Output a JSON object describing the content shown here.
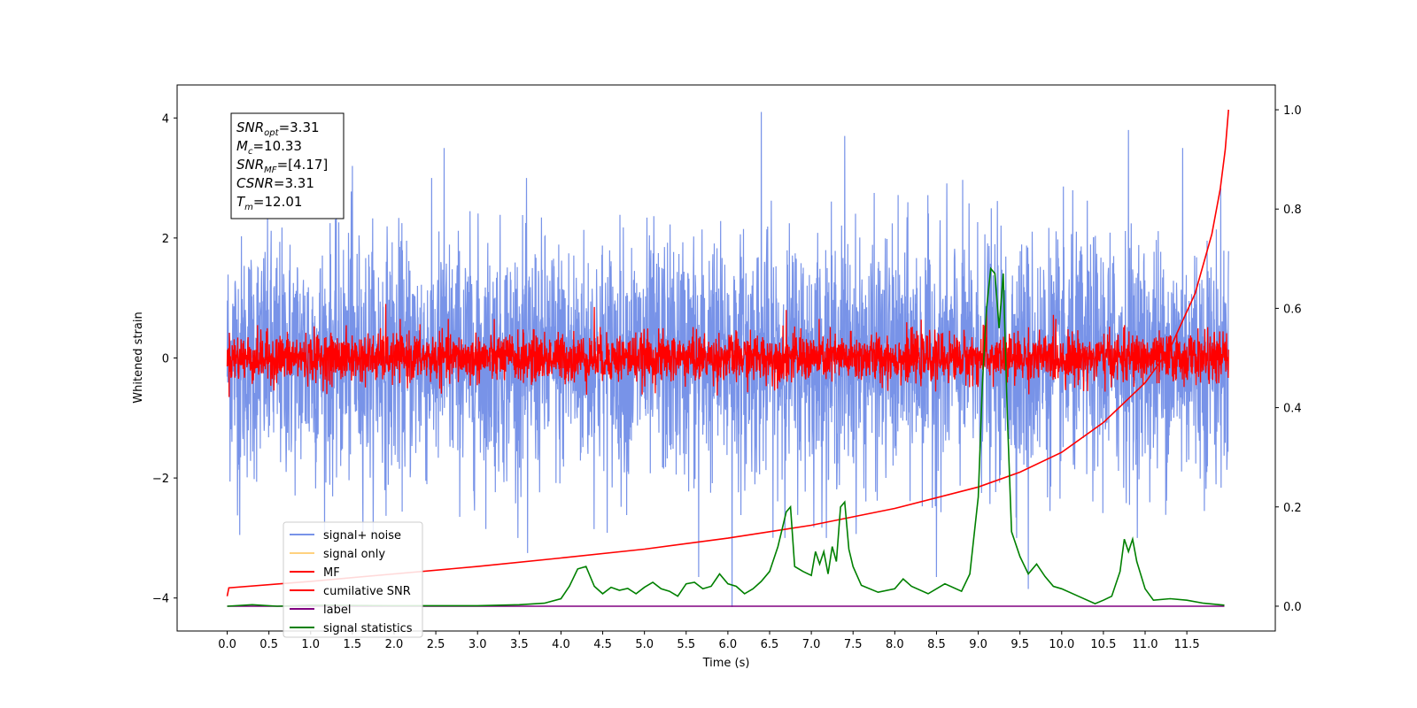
{
  "chart_data": {
    "type": "line",
    "xlabel": "Time (s)",
    "ylabel": "Whitened strain",
    "xlim": [
      -0.6,
      12.56
    ],
    "ylim": [
      -4.55,
      4.55
    ],
    "y2lim": [
      -0.05,
      1.05
    ],
    "x_ticks": [
      "0.0",
      "0.5",
      "1.0",
      "1.5",
      "2.0",
      "2.5",
      "3.0",
      "3.5",
      "4.0",
      "4.5",
      "5.0",
      "5.5",
      "6.0",
      "6.5",
      "7.0",
      "7.5",
      "8.0",
      "8.5",
      "9.0",
      "9.5",
      "10.0",
      "10.5",
      "11.0",
      "11.5"
    ],
    "y_ticks": [
      "−4",
      "−2",
      "0",
      "2",
      "4"
    ],
    "y2_ticks": [
      "0.0",
      "0.2",
      "0.4",
      "0.6",
      "0.8",
      "1.0"
    ],
    "info_box": [
      {
        "base": "SNR",
        "sub": "opt",
        "value": "=3.31"
      },
      {
        "base": "M",
        "sub": "c",
        "value": "=10.33"
      },
      {
        "base": "SNR",
        "sub": "MF",
        "value": "=[4.17]"
      },
      {
        "base": "CSNR",
        "sub": "",
        "value": "=3.31"
      },
      {
        "base": "T",
        "sub": "m",
        "value": "=12.01"
      }
    ],
    "legend": {
      "placement": "lower-left",
      "entries": [
        {
          "label": "signal+ noise",
          "color": "#7893e8"
        },
        {
          "label": "signal only",
          "color": "#ffd27f"
        },
        {
          "label": "MF",
          "color": "#ff0000"
        },
        {
          "label": "cumilative SNR",
          "color": "#ff0000"
        },
        {
          "label": "label",
          "color": "#800080"
        },
        {
          "label": "signal statistics",
          "color": "#008000"
        }
      ]
    },
    "series": [
      {
        "name": "signal+ noise",
        "color": "#7893e8",
        "axis": "left",
        "x_range": [
          0,
          12.0
        ],
        "peaks": [
          {
            "x": 6.4,
            "y": 4.1
          },
          {
            "x": 10.8,
            "y": 3.8
          },
          {
            "x": 7.4,
            "y": 3.7
          },
          {
            "x": 1.5,
            "y": 3.2
          },
          {
            "x": 2.6,
            "y": 3.5
          },
          {
            "x": 11.45,
            "y": 3.5
          },
          {
            "x": 6.05,
            "y": -4.15
          },
          {
            "x": 5.65,
            "y": -3.65
          },
          {
            "x": 8.5,
            "y": -3.65
          },
          {
            "x": 3.6,
            "y": -3.25
          },
          {
            "x": 0.15,
            "y": -2.95
          },
          {
            "x": 9.6,
            "y": -3.85
          }
        ]
      },
      {
        "name": "MF",
        "color": "#ff0000",
        "axis": "left",
        "x_range": [
          0,
          12.0
        ],
        "peaks": [
          {
            "x": 1.9,
            "y": 0.9
          },
          {
            "x": 4.4,
            "y": 0.85
          },
          {
            "x": 6.7,
            "y": 0.8
          },
          {
            "x": 9.1,
            "y": 0.8
          },
          {
            "x": 9.9,
            "y": 0.72
          }
        ]
      },
      {
        "name": "cumilative SNR",
        "color": "#ff0000",
        "axis": "right",
        "x": [
          0.0,
          0.02,
          1.0,
          2.0,
          3.0,
          4.0,
          5.0,
          6.0,
          7.0,
          8.0,
          9.0,
          9.5,
          10.0,
          10.5,
          11.0,
          11.3,
          11.6,
          11.8,
          11.9,
          11.96,
          12.0
        ],
        "y": [
          0.02,
          0.037,
          0.05,
          0.065,
          0.08,
          0.097,
          0.115,
          0.137,
          0.163,
          0.197,
          0.24,
          0.27,
          0.31,
          0.37,
          0.45,
          0.52,
          0.63,
          0.75,
          0.84,
          0.92,
          1.0
        ]
      },
      {
        "name": "label",
        "color": "#800080",
        "axis": "right",
        "x": [
          0.0,
          11.95
        ],
        "y": [
          0.0,
          0.0
        ]
      },
      {
        "name": "signal statistics",
        "color": "#008000",
        "axis": "right",
        "x": [
          0.0,
          0.3,
          0.6,
          1.0,
          2.0,
          3.0,
          3.5,
          3.8,
          4.0,
          4.1,
          4.2,
          4.3,
          4.4,
          4.5,
          4.6,
          4.7,
          4.8,
          4.9,
          5.0,
          5.1,
          5.2,
          5.3,
          5.4,
          5.5,
          5.6,
          5.7,
          5.8,
          5.9,
          6.0,
          6.1,
          6.2,
          6.3,
          6.4,
          6.5,
          6.6,
          6.7,
          6.75,
          6.8,
          6.9,
          7.0,
          7.05,
          7.1,
          7.15,
          7.2,
          7.25,
          7.3,
          7.35,
          7.4,
          7.45,
          7.5,
          7.6,
          7.8,
          8.0,
          8.1,
          8.2,
          8.4,
          8.6,
          8.8,
          8.9,
          9.0,
          9.05,
          9.1,
          9.15,
          9.2,
          9.25,
          9.3,
          9.35,
          9.4,
          9.5,
          9.6,
          9.7,
          9.8,
          9.9,
          10.0,
          10.2,
          10.4,
          10.5,
          10.6,
          10.7,
          10.75,
          10.8,
          10.85,
          10.9,
          11.0,
          11.1,
          11.3,
          11.5,
          11.7,
          11.95
        ],
        "y": [
          0.0,
          0.003,
          0.0,
          0.002,
          0.001,
          0.001,
          0.003,
          0.006,
          0.015,
          0.04,
          0.075,
          0.08,
          0.04,
          0.025,
          0.038,
          0.032,
          0.036,
          0.025,
          0.038,
          0.048,
          0.035,
          0.03,
          0.02,
          0.045,
          0.048,
          0.035,
          0.04,
          0.065,
          0.045,
          0.04,
          0.025,
          0.035,
          0.05,
          0.07,
          0.12,
          0.19,
          0.2,
          0.08,
          0.07,
          0.062,
          0.11,
          0.085,
          0.11,
          0.065,
          0.12,
          0.09,
          0.2,
          0.21,
          0.115,
          0.08,
          0.042,
          0.028,
          0.035,
          0.055,
          0.04,
          0.025,
          0.045,
          0.03,
          0.065,
          0.22,
          0.45,
          0.6,
          0.68,
          0.67,
          0.56,
          0.67,
          0.38,
          0.15,
          0.1,
          0.065,
          0.085,
          0.06,
          0.04,
          0.035,
          0.02,
          0.005,
          0.012,
          0.02,
          0.07,
          0.135,
          0.11,
          0.135,
          0.09,
          0.035,
          0.012,
          0.015,
          0.012,
          0.006,
          0.002
        ]
      }
    ]
  }
}
